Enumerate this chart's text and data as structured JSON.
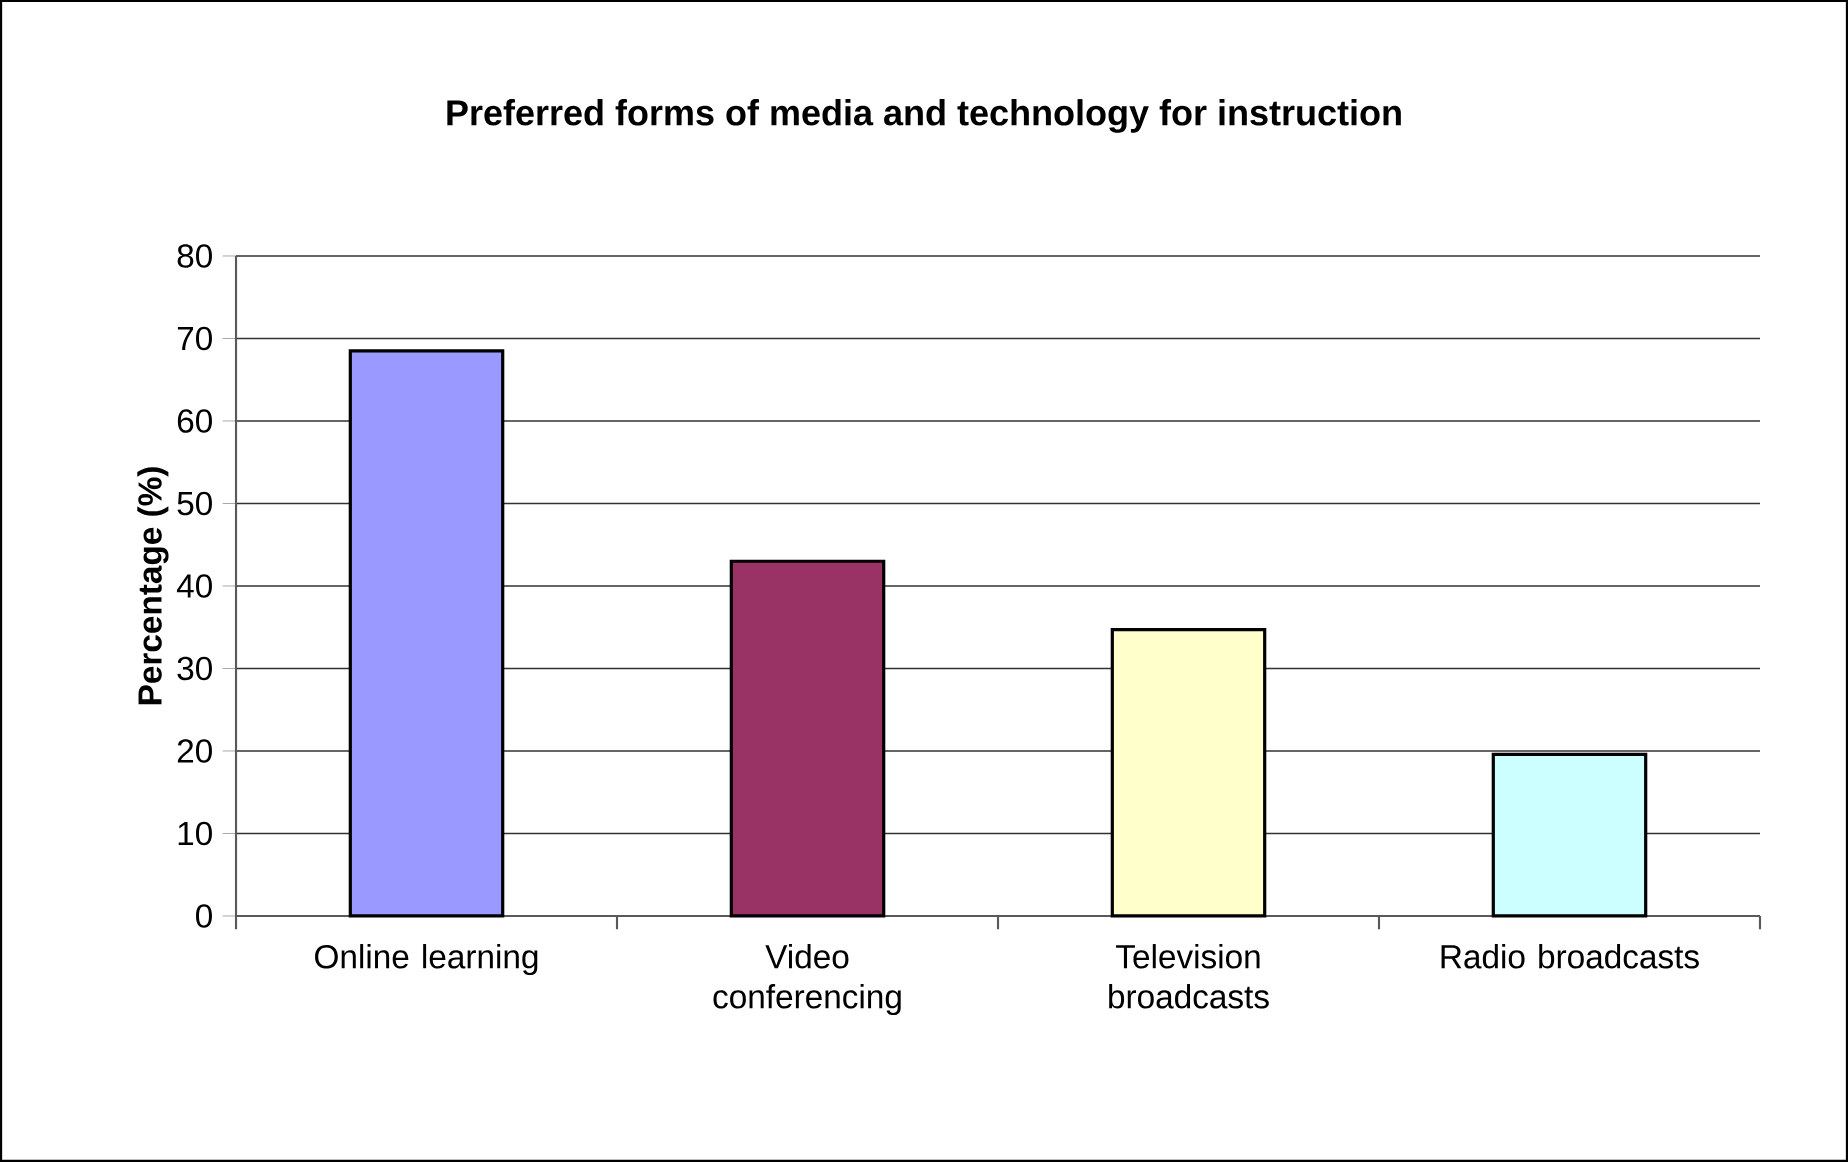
{
  "chart_data": {
    "type": "bar",
    "title": "Preferred forms of media and technology for instruction",
    "ylabel": "Percentage (%)",
    "categories": [
      "Online learning",
      "Video conferencing",
      "Television broadcasts",
      "Radio broadcasts"
    ],
    "values": [
      68.5,
      43.0,
      34.7,
      19.6
    ],
    "colors": [
      "#9999ff",
      "#993366",
      "#ffffcc",
      "#ccffff"
    ],
    "ylim": [
      0,
      80
    ],
    "yticks": [
      0,
      10,
      20,
      30,
      40,
      50,
      60,
      70,
      80
    ],
    "grid": "y"
  }
}
